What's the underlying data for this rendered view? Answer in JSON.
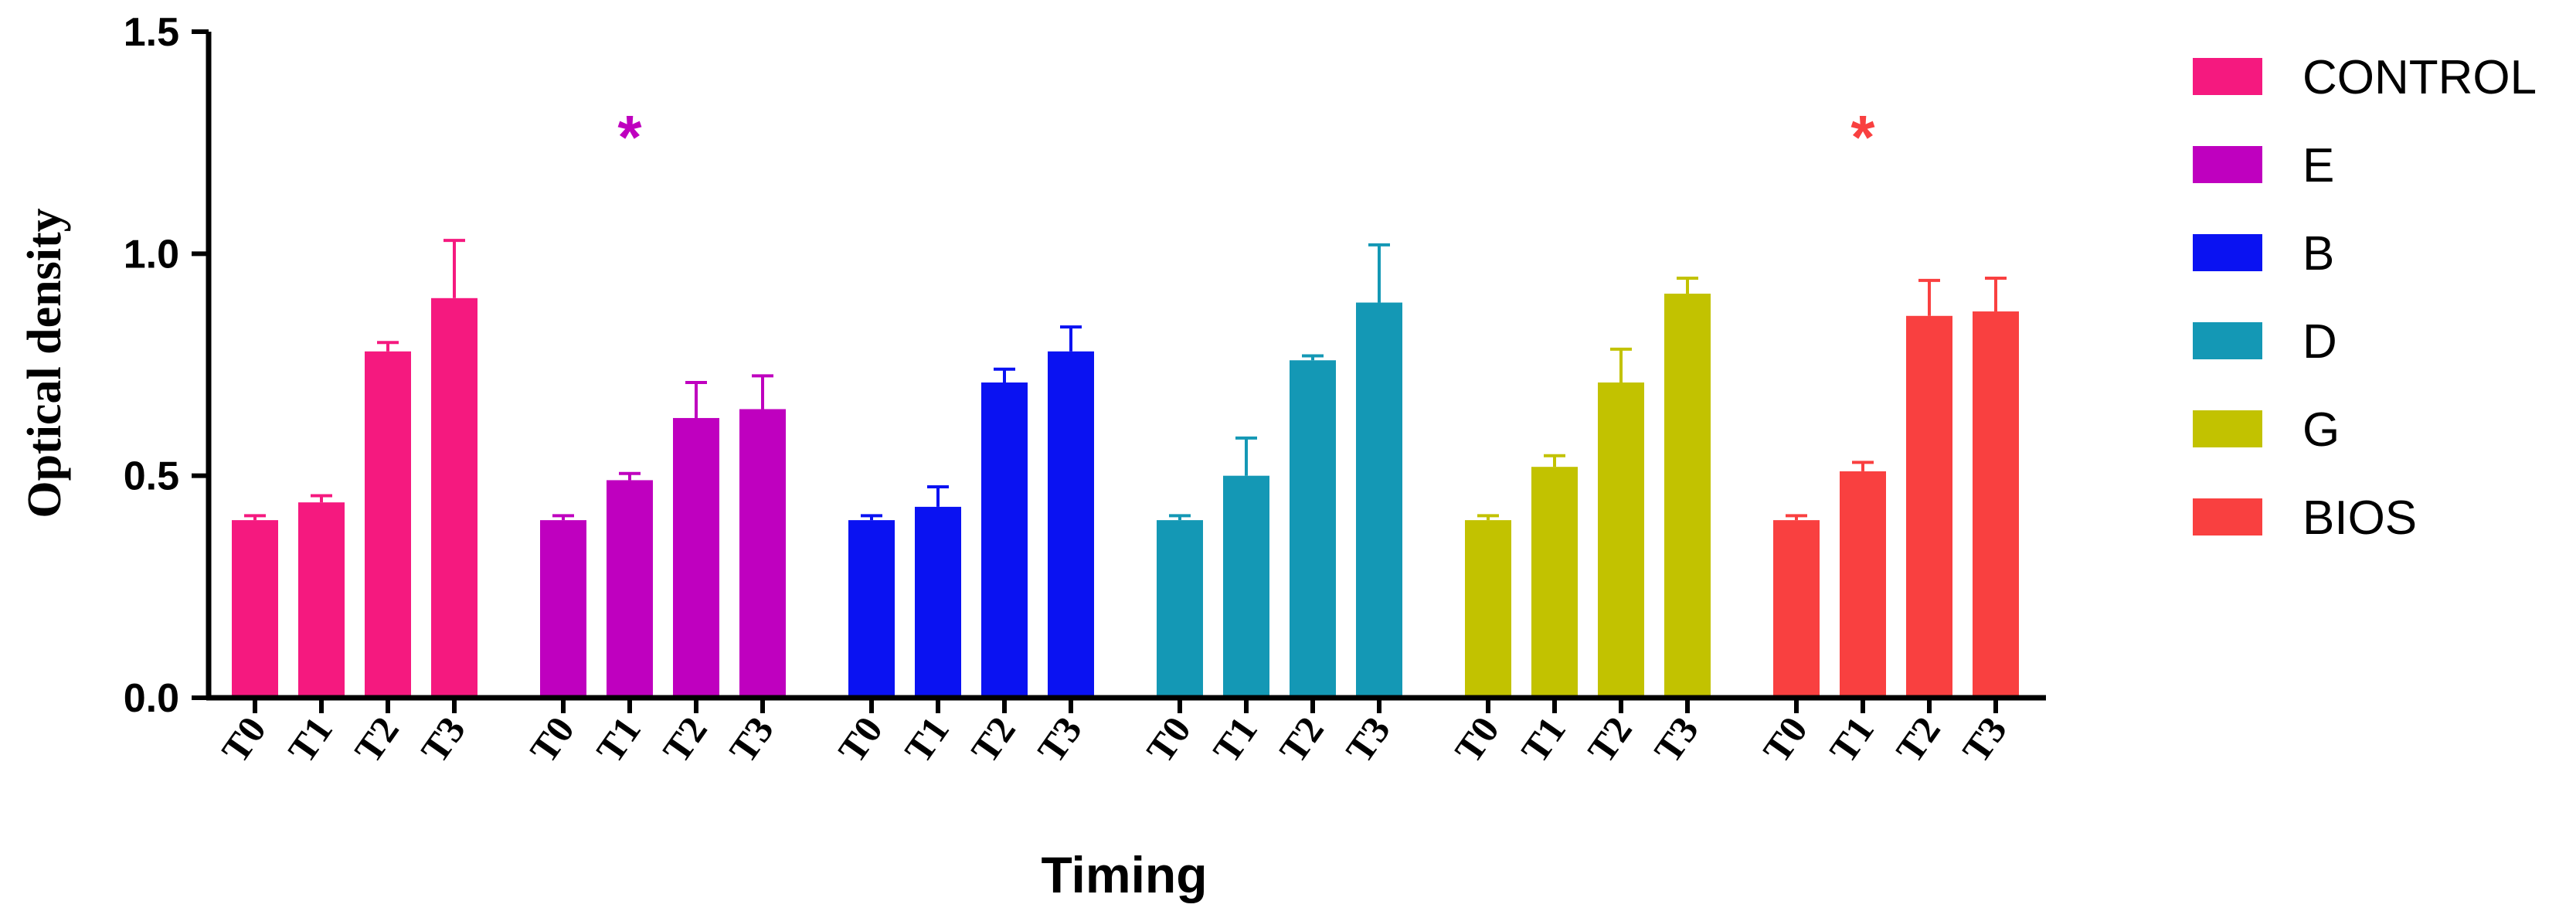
{
  "chart_data": {
    "type": "bar",
    "title": "",
    "xlabel": "Timing",
    "ylabel": "Optical density",
    "ylim": [
      0,
      1.5
    ],
    "yticks": [
      "0.0",
      "0.5",
      "1.0",
      "1.5"
    ],
    "categories": [
      "T0",
      "T1",
      "T2",
      "T3"
    ],
    "legend_position": "right",
    "grid": false,
    "series": [
      {
        "name": "CONTROL",
        "color": "#F5197F",
        "values": [
          0.4,
          0.44,
          0.78,
          0.9
        ],
        "errors": [
          0.01,
          0.015,
          0.02,
          0.13
        ],
        "significance": ""
      },
      {
        "name": "E",
        "color": "#BF00BF",
        "values": [
          0.4,
          0.49,
          0.63,
          0.65
        ],
        "errors": [
          0.01,
          0.015,
          0.08,
          0.075
        ],
        "significance": "*"
      },
      {
        "name": "B",
        "color": "#0A12F2",
        "values": [
          0.4,
          0.43,
          0.71,
          0.78
        ],
        "errors": [
          0.01,
          0.045,
          0.03,
          0.055
        ],
        "significance": ""
      },
      {
        "name": "D",
        "color": "#1498B5",
        "values": [
          0.4,
          0.5,
          0.76,
          0.89
        ],
        "errors": [
          0.01,
          0.085,
          0.01,
          0.13
        ],
        "significance": ""
      },
      {
        "name": "G",
        "color": "#C2C200",
        "values": [
          0.4,
          0.52,
          0.71,
          0.91
        ],
        "errors": [
          0.01,
          0.025,
          0.075,
          0.035
        ],
        "significance": ""
      },
      {
        "name": "BIOS",
        "color": "#F94040",
        "values": [
          0.4,
          0.51,
          0.86,
          0.87
        ],
        "errors": [
          0.01,
          0.02,
          0.08,
          0.075
        ],
        "significance": "*"
      }
    ]
  }
}
